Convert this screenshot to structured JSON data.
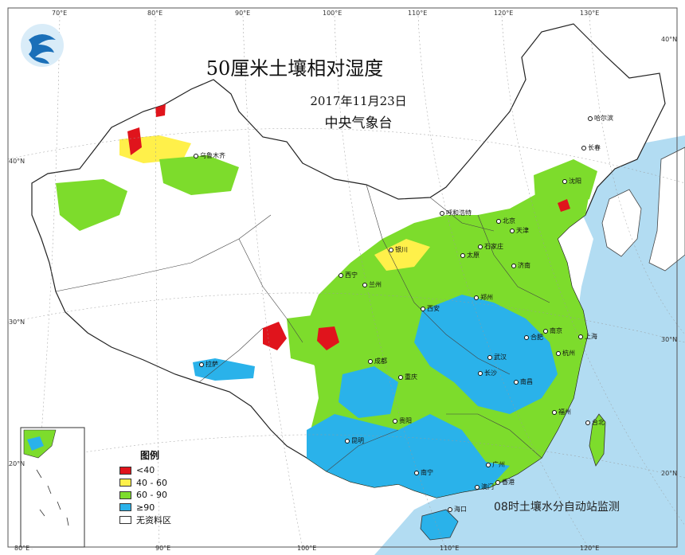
{
  "title": "50厘米土壤相对湿度",
  "date": "2017年11月23日",
  "organization": "中央气象台",
  "footnote": "08时土壤水分自动站监测",
  "legend": {
    "title": "图例",
    "items": [
      {
        "label": "<40",
        "color": "#e0141c"
      },
      {
        "label": "40 - 60",
        "color": "#fff04a"
      },
      {
        "label": "60 - 90",
        "color": "#7ddc2c"
      },
      {
        "label": "≥90",
        "color": "#2ab2ea"
      },
      {
        "label": "无资料区",
        "color": "#ffffff"
      }
    ]
  },
  "ticks": {
    "top": [
      "70°E",
      "80°E",
      "90°E",
      "100°E",
      "110°E",
      "120°E",
      "130°E"
    ],
    "bottom": [
      "80°E",
      "90°E",
      "100°E",
      "110°E",
      "120°E"
    ],
    "left": [
      "40°N",
      "30°N",
      "20°N"
    ],
    "right": [
      "40°N",
      "30°N",
      "20°N"
    ]
  },
  "cities": [
    "乌鲁木齐",
    "拉萨",
    "西宁",
    "兰州",
    "银川",
    "呼和浩特",
    "北京",
    "天津",
    "石家庄",
    "太原",
    "济南",
    "郑州",
    "西安",
    "成都",
    "重庆",
    "贵阳",
    "昆明",
    "南宁",
    "长沙",
    "武汉",
    "南昌",
    "合肥",
    "南京",
    "上海",
    "杭州",
    "福州",
    "台北",
    "广州",
    "香港",
    "澳门",
    "海口",
    "沈阳",
    "长春",
    "哈尔滨"
  ],
  "colors": {
    "sea": "#b2dcf2",
    "land": "#ffffff",
    "border": "#222222"
  }
}
